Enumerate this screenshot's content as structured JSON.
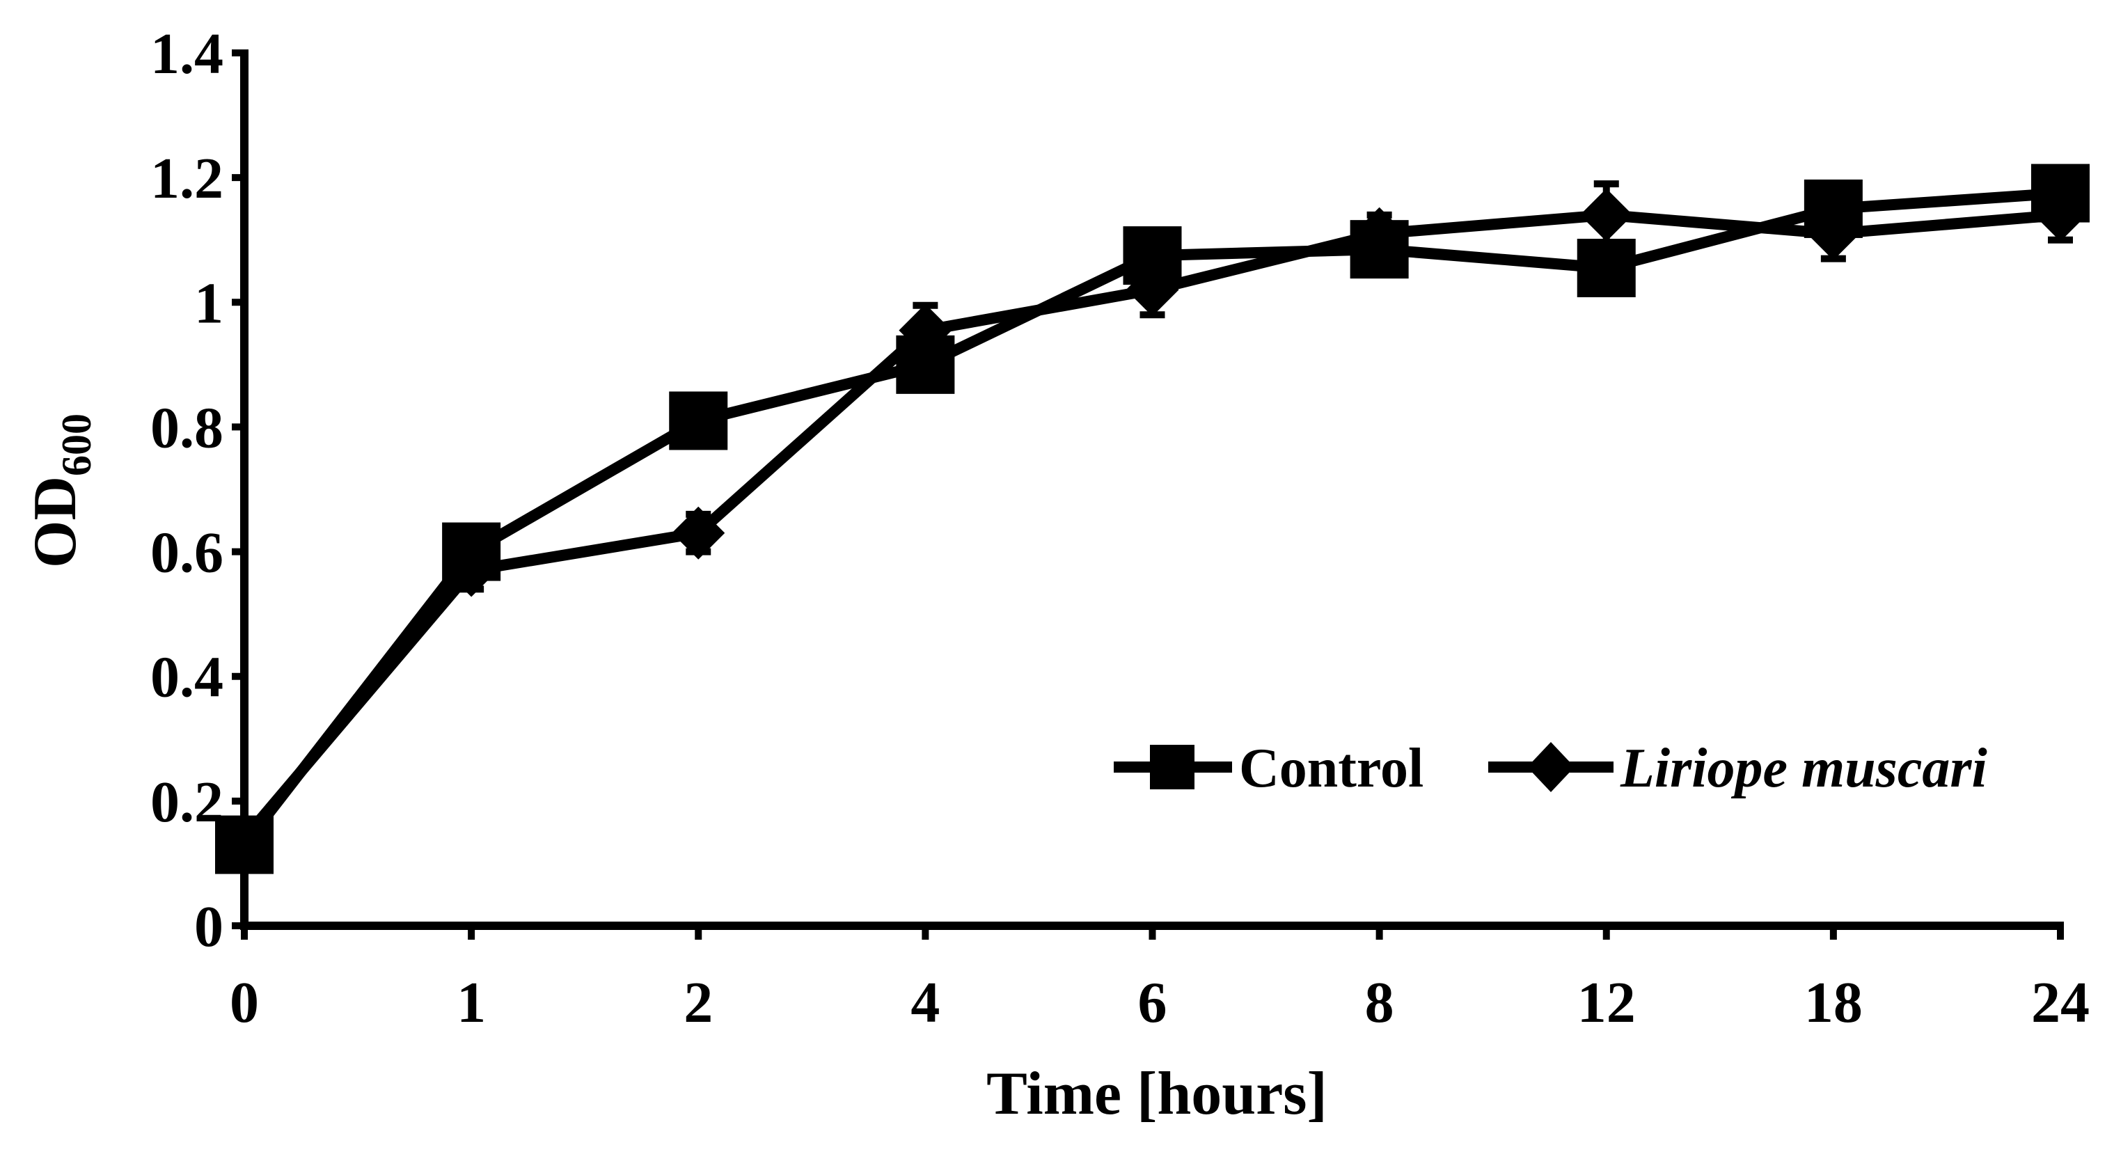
{
  "chart_data": {
    "type": "line",
    "title": "",
    "xlabel": "Time [hours]",
    "ylabel": "OD",
    "ylabel_subscript": "600",
    "categories": [
      "0",
      "1",
      "2",
      "4",
      "6",
      "8",
      "12",
      "18",
      "24"
    ],
    "ylim": [
      0,
      1.4
    ],
    "yticks": [
      "0",
      "0.2",
      "0.4",
      "0.6",
      "0.8",
      "1",
      "1.2",
      "1.4"
    ],
    "ytick_values": [
      0,
      0.2,
      0.4,
      0.6,
      0.8,
      1.0,
      1.2,
      1.4
    ],
    "grid": false,
    "legend_position": "bottom-right",
    "series": [
      {
        "name": "Control",
        "marker": "square",
        "values": [
          0.13,
          0.6,
          0.81,
          0.9,
          1.075,
          1.085,
          1.055,
          1.15,
          1.175
        ],
        "errors": [
          0.02,
          0.02,
          0.02,
          0.03,
          0.03,
          0.03,
          0.03,
          0.03,
          0.03
        ]
      },
      {
        "name": "Liriope muscari",
        "marker": "diamond",
        "values": [
          0.14,
          0.57,
          0.63,
          0.955,
          1.02,
          1.11,
          1.14,
          1.11,
          1.14
        ],
        "errors": [
          0.02,
          0.03,
          0.03,
          0.04,
          0.04,
          0.03,
          0.05,
          0.04,
          0.04
        ]
      }
    ],
    "colors": {
      "line": "#000000",
      "background": "#ffffff"
    }
  }
}
